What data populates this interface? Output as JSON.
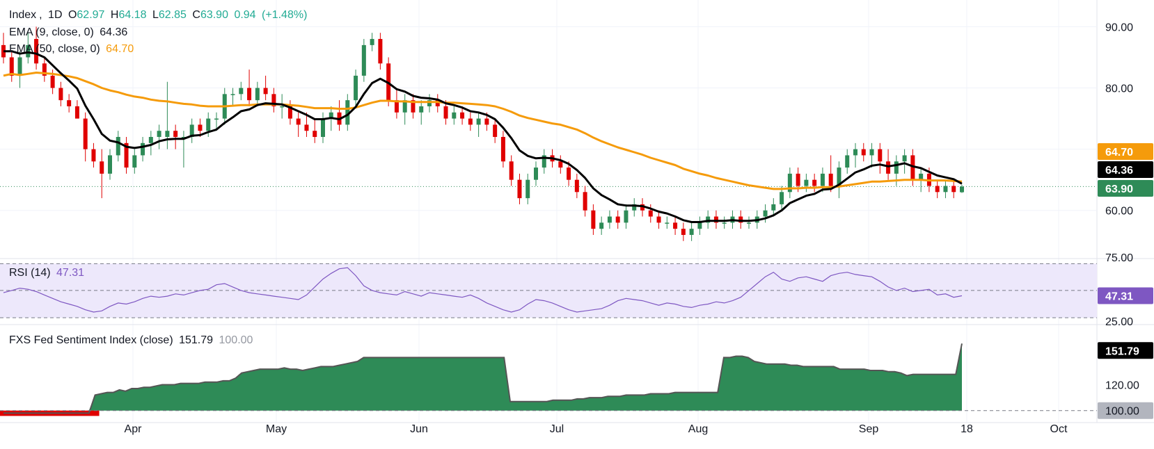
{
  "chart_data": [
    {
      "type": "candlestick",
      "symbol": "Index",
      "interval": "1D",
      "ohlc": {
        "open": "62.97",
        "high": "64.18",
        "low": "62.85",
        "close": "63.90",
        "change": "0.94",
        "change_pct": "(+1.48%)"
      },
      "ema9": {
        "label": "EMA (9, close, 0)",
        "value": "64.36",
        "color": "#000000"
      },
      "ema50": {
        "label": "EMA (50, close, 0)",
        "value": "64.70",
        "color": "#f59b0b"
      },
      "y_ticks": [
        "90.00",
        "80.00",
        "60.00"
      ],
      "ylim": [
        53.5,
        93
      ],
      "price_badges": [
        {
          "value": "64.70",
          "color": "#f59b0b"
        },
        {
          "value": "64.36",
          "color": "#000000"
        },
        {
          "value": "63.90",
          "color": "#2e8b57"
        }
      ],
      "last_close": 63.9,
      "up_color": "#2e8b57",
      "down_color": "#e00000",
      "candles": [
        [
          87,
          89,
          84,
          85
        ],
        [
          85,
          86,
          81,
          82
        ],
        [
          82,
          86,
          80,
          85
        ],
        [
          85,
          89,
          84,
          87
        ],
        [
          88,
          90,
          83,
          84
        ],
        [
          84,
          85,
          81,
          82
        ],
        [
          82,
          83,
          79,
          80
        ],
        [
          80,
          81,
          77,
          78
        ],
        [
          78,
          79,
          76,
          77
        ],
        [
          77,
          78,
          75,
          75
        ],
        [
          75,
          76,
          68,
          70
        ],
        [
          70,
          71,
          67,
          68
        ],
        [
          68,
          70,
          62,
          66
        ],
        [
          66,
          70,
          65,
          69
        ],
        [
          69,
          73,
          68,
          72
        ],
        [
          71,
          72,
          66,
          67
        ],
        [
          67,
          70,
          66,
          69
        ],
        [
          69,
          72,
          68,
          71
        ],
        [
          71,
          73,
          69,
          72
        ],
        [
          72,
          74,
          70,
          73
        ],
        [
          72,
          81,
          70,
          73
        ],
        [
          73,
          74,
          70,
          72
        ],
        [
          72,
          73,
          67,
          72
        ],
        [
          72,
          75,
          71,
          74
        ],
        [
          74,
          75,
          72,
          73
        ],
        [
          73,
          76,
          72,
          75
        ],
        [
          75,
          76,
          73,
          75
        ],
        [
          75,
          80,
          74,
          79
        ],
        [
          79,
          80,
          77,
          79
        ],
        [
          79,
          81,
          78,
          80
        ],
        [
          80,
          83,
          77,
          78
        ],
        [
          78,
          81,
          77,
          80
        ],
        [
          80,
          82,
          78,
          79
        ],
        [
          79,
          80,
          76,
          77
        ],
        [
          77,
          79,
          75,
          77
        ],
        [
          77,
          78,
          74,
          75
        ],
        [
          75,
          76,
          72,
          74
        ],
        [
          74,
          76,
          72,
          73
        ],
        [
          73,
          75,
          71,
          72
        ],
        [
          72,
          76,
          71,
          75
        ],
        [
          75,
          77,
          73,
          76
        ],
        [
          76,
          78,
          73,
          74
        ],
        [
          74,
          79,
          73,
          78
        ],
        [
          78,
          83,
          77,
          82
        ],
        [
          82,
          88,
          81,
          87
        ],
        [
          87,
          89,
          86,
          88
        ],
        [
          88,
          89,
          83,
          84
        ],
        [
          84,
          85,
          77,
          78
        ],
        [
          78,
          80,
          75,
          76
        ],
        [
          76,
          79,
          74,
          78
        ],
        [
          78,
          79,
          75,
          76
        ],
        [
          76,
          78,
          74,
          77
        ],
        [
          77,
          79,
          76,
          78
        ],
        [
          78,
          79,
          76,
          77
        ],
        [
          77,
          78,
          74,
          75
        ],
        [
          75,
          77,
          74,
          76
        ],
        [
          76,
          77,
          74,
          75
        ],
        [
          75,
          76,
          73,
          74
        ],
        [
          74,
          76,
          72,
          75
        ],
        [
          75,
          76,
          73,
          74
        ],
        [
          74,
          75,
          71,
          72
        ],
        [
          72,
          73,
          67,
          68
        ],
        [
          68,
          69,
          64,
          65
        ],
        [
          65,
          66,
          61,
          62
        ],
        [
          62,
          66,
          61,
          65
        ],
        [
          65,
          68,
          64,
          67
        ],
        [
          67,
          70,
          66,
          69
        ],
        [
          69,
          70,
          67,
          68
        ],
        [
          68,
          69,
          66,
          67
        ],
        [
          67,
          68,
          64,
          65
        ],
        [
          65,
          66,
          62,
          63
        ],
        [
          63,
          64,
          59,
          60
        ],
        [
          60,
          61,
          56,
          57
        ],
        [
          57,
          59,
          56,
          58
        ],
        [
          58,
          60,
          57,
          59
        ],
        [
          59,
          60,
          57,
          58
        ],
        [
          58,
          61,
          57,
          60
        ],
        [
          60,
          62,
          59,
          61
        ],
        [
          61,
          62,
          59,
          60
        ],
        [
          60,
          61,
          58,
          59
        ],
        [
          59,
          60,
          57,
          58
        ],
        [
          58,
          59,
          57,
          58
        ],
        [
          58,
          59,
          56,
          57
        ],
        [
          57,
          58,
          55,
          56
        ],
        [
          56,
          58,
          55,
          57
        ],
        [
          57,
          59,
          56,
          58
        ],
        [
          58,
          60,
          57,
          59
        ],
        [
          59,
          60,
          57,
          58
        ],
        [
          58,
          59,
          57,
          58
        ],
        [
          58,
          60,
          57,
          59
        ],
        [
          59,
          60,
          57,
          58
        ],
        [
          58,
          59,
          57,
          58
        ],
        [
          58,
          60,
          57,
          59
        ],
        [
          59,
          61,
          58,
          60
        ],
        [
          60,
          62,
          59,
          61
        ],
        [
          61,
          64,
          60,
          63
        ],
        [
          63,
          67,
          62,
          66
        ],
        [
          66,
          67,
          63,
          64
        ],
        [
          64,
          66,
          63,
          65
        ],
        [
          65,
          66,
          63,
          64
        ],
        [
          64,
          67,
          63,
          66
        ],
        [
          66,
          69,
          63,
          64
        ],
        [
          64,
          68,
          62,
          67
        ],
        [
          67,
          70,
          66,
          69
        ],
        [
          69,
          71,
          67,
          70
        ],
        [
          70,
          71,
          68,
          69
        ],
        [
          69,
          71,
          67,
          70
        ],
        [
          70,
          71,
          66,
          68
        ],
        [
          68,
          70,
          65,
          66
        ],
        [
          66,
          69,
          64,
          68
        ],
        [
          68,
          70,
          66,
          69
        ],
        [
          69,
          70,
          64,
          65
        ],
        [
          65,
          67,
          63,
          66
        ],
        [
          66,
          67,
          63,
          64
        ],
        [
          64,
          65,
          62,
          63
        ],
        [
          63,
          65,
          62,
          64
        ],
        [
          64,
          65,
          62,
          63
        ],
        [
          62.97,
          64.18,
          62.85,
          63.9
        ]
      ],
      "ema9_values": [
        86,
        86,
        85.6,
        85.8,
        85.6,
        85,
        83.7,
        82.4,
        81.2,
        79.9,
        77.1,
        74.9,
        72.5,
        71.4,
        71.1,
        70.4,
        70.2,
        70.4,
        70.7,
        71.3,
        71.6,
        71.7,
        71.7,
        72.2,
        72.3,
        72.8,
        73.2,
        74.3,
        75.2,
        76.2,
        76.5,
        77.2,
        77.5,
        77.4,
        77.3,
        76.8,
        76.2,
        75.6,
        74.9,
        74.9,
        75.1,
        74.9,
        75.6,
        76.9,
        79,
        80.8,
        81.5,
        80.8,
        79.8,
        79.4,
        78.7,
        78.4,
        78.3,
        78.1,
        77.5,
        77.2,
        76.8,
        76.2,
        76,
        75.6,
        74.9,
        73.5,
        71.8,
        69.8,
        68.9,
        68.5,
        68.6,
        68.5,
        68.2,
        67.6,
        66.6,
        65.3,
        63.6,
        62.5,
        61.8,
        61,
        60.8,
        60.8,
        60.7,
        60.3,
        59.8,
        59.5,
        59,
        58.4,
        58.1,
        58.1,
        58.3,
        58.3,
        58.3,
        58.4,
        58.3,
        58.3,
        58.4,
        58.7,
        59.2,
        60,
        61.2,
        61.8,
        62.4,
        62.7,
        63.4,
        63.5,
        64.2,
        65.2,
        66.2,
        66.7,
        67.3,
        67.5,
        67.2,
        67.4,
        67.7,
        67.2,
        66.9,
        66.3,
        65.7,
        65.4,
        65.1,
        64.36
      ],
      "ema50_values": [
        82,
        82.3,
        82.1,
        82.3,
        82.5,
        82.4,
        82.3,
        82.1,
        81.9,
        81.6,
        81.1,
        80.6,
        80,
        79.6,
        79.3,
        78.9,
        78.6,
        78.4,
        78.1,
        77.9,
        77.8,
        77.6,
        77.4,
        77.3,
        77.1,
        77,
        77,
        77,
        77.1,
        77.2,
        77.2,
        77.3,
        77.3,
        77.3,
        77.3,
        77.2,
        77.1,
        76.9,
        76.7,
        76.7,
        76.7,
        76.6,
        76.6,
        76.8,
        77.2,
        77.6,
        77.9,
        77.9,
        77.8,
        77.8,
        77.7,
        77.7,
        77.7,
        77.7,
        77.6,
        77.6,
        77.5,
        77.4,
        77.3,
        77.2,
        77,
        76.6,
        76.1,
        75.5,
        75.1,
        74.8,
        74.5,
        74.2,
        74,
        73.6,
        73.2,
        72.6,
        71.9,
        71.3,
        70.8,
        70.3,
        69.9,
        69.5,
        69.1,
        68.6,
        68.2,
        67.8,
        67.4,
        66.8,
        66.4,
        66,
        65.7,
        65.3,
        65,
        64.7,
        64.4,
        64.1,
        63.9,
        63.7,
        63.5,
        63.5,
        63.6,
        63.6,
        63.7,
        63.7,
        63.8,
        63.8,
        63.9,
        64.1,
        64.3,
        64.5,
        64.7,
        64.7,
        64.8,
        64.9,
        65,
        65,
        65,
        64.9,
        64.9,
        64.9,
        64.8,
        64.7
      ]
    },
    {
      "type": "line",
      "title": "RSI (14)",
      "value": "47.31",
      "color": "#7e57c2",
      "ticks": [
        "75.00",
        "25.00"
      ],
      "band": [
        30,
        70
      ],
      "ylim": [
        22,
        80
      ],
      "values": [
        50,
        52,
        54,
        53,
        51,
        48,
        45,
        42,
        40,
        38,
        35,
        33,
        34,
        38,
        41,
        40,
        42,
        45,
        47,
        46,
        47,
        49,
        48,
        50,
        52,
        53,
        57,
        58,
        55,
        52,
        50,
        49,
        48,
        47,
        46,
        45,
        44,
        48,
        55,
        62,
        67,
        71,
        72,
        65,
        56,
        52,
        50,
        49,
        48,
        51,
        49,
        47,
        50,
        49,
        48,
        47,
        46,
        48,
        45,
        41,
        38,
        35,
        33,
        35,
        40,
        44,
        43,
        41,
        38,
        35,
        33,
        34,
        35,
        36,
        39,
        43,
        45,
        44,
        43,
        41,
        39,
        41,
        40,
        38,
        37,
        39,
        40,
        42,
        41,
        43,
        46,
        52,
        58,
        64,
        68,
        62,
        60,
        63,
        64,
        62,
        60,
        65,
        67,
        68,
        66,
        65,
        64,
        60,
        55,
        52,
        54,
        51,
        52,
        53,
        48,
        49,
        46,
        47.31
      ]
    },
    {
      "type": "area",
      "title": "FXS Fed Sentiment Index (close)",
      "value": "151.79",
      "second_value": "100.00",
      "ticks": [
        "120.00"
      ],
      "ylim": [
        95,
        160
      ],
      "baseline": 100,
      "color": "#2e8b57",
      "below_color": "#e00000",
      "values": [
        98,
        98,
        98,
        98,
        98,
        98,
        98,
        98,
        98,
        98,
        98,
        98,
        98,
        98,
        98,
        112,
        113,
        114,
        114,
        116,
        115,
        117,
        117,
        118,
        118,
        119,
        120,
        120,
        120,
        121,
        121,
        121,
        121,
        122,
        122,
        122,
        123,
        123,
        125,
        129,
        130,
        131,
        132,
        132,
        132,
        132,
        133,
        132,
        132,
        131,
        132,
        133,
        134,
        134,
        134,
        135,
        136,
        137,
        138,
        141,
        141,
        141,
        141,
        141,
        141,
        141,
        141,
        141,
        141,
        141,
        141,
        141,
        141,
        141,
        141,
        141,
        141,
        141,
        141,
        141,
        141,
        141,
        141,
        107,
        107,
        107,
        107,
        107,
        107,
        107,
        108,
        108,
        108,
        108,
        109,
        109,
        110,
        110,
        110,
        111,
        111,
        111,
        112,
        112,
        112,
        112,
        113,
        113,
        113,
        113,
        114,
        114,
        114,
        114,
        114,
        114,
        114,
        114,
        141,
        141,
        142,
        142,
        141,
        138,
        137,
        136,
        136,
        136,
        136,
        135,
        135,
        134,
        134,
        134,
        134,
        134,
        134,
        132,
        132,
        132,
        132,
        132,
        131,
        131,
        131,
        130,
        130,
        129,
        127,
        128,
        128,
        128,
        128,
        128,
        128,
        128,
        128,
        151.79
      ]
    }
  ],
  "x_labels": [
    "Apr",
    "May",
    "Jun",
    "Jul",
    "Aug",
    "Sep",
    "18",
    "Oct"
  ],
  "bottom_badges": {
    "sentiment": "151.79",
    "baseline": "100.00"
  }
}
